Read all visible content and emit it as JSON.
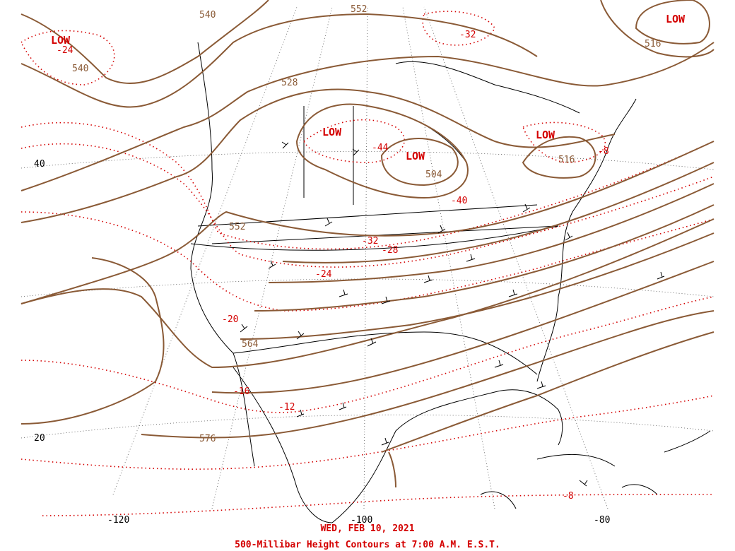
{
  "map": {
    "date_text": "WED, FEB 10, 2021",
    "title_text": "500-Millibar Height Contours at 7:00 A.M. E.S.T.",
    "colors": {
      "height_contour": "#8a5a36",
      "temperature_isotherm": "#d40000",
      "coastline": "#000000",
      "graticule": "#555555"
    },
    "lat_labels": [
      "40",
      "20"
    ],
    "lon_labels": [
      "-120",
      "-100",
      "-80"
    ],
    "lows": [
      "LOW",
      "LOW",
      "LOW",
      "LOW",
      "LOW"
    ],
    "height_labels": [
      "540",
      "552",
      "540",
      "516",
      "528",
      "504",
      "516",
      "552",
      "564",
      "576"
    ],
    "temp_labels": [
      "-24",
      "-32",
      "-44",
      "-40",
      "-32",
      "-28",
      "-24",
      "-20",
      "-16",
      "-12",
      "-8",
      "-8"
    ]
  }
}
